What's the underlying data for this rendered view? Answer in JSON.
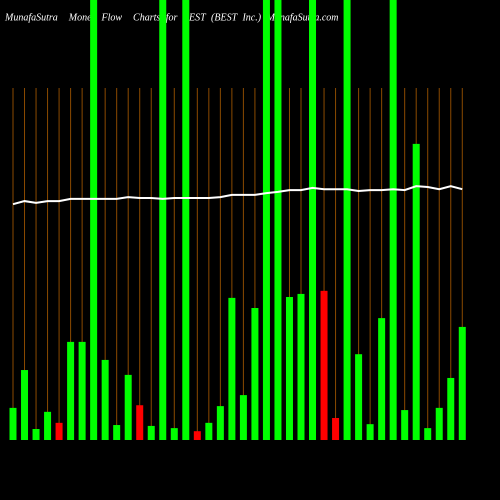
{
  "chart_data": {
    "type": "bar",
    "title": "MunafaSutra  Money Flow  Charts for BEST (BEST Inc.) MunafaSutra.com",
    "categories": [
      null,
      null,
      null,
      null,
      null,
      null,
      null,
      null,
      null,
      null,
      null,
      null,
      null,
      null,
      null,
      null,
      null,
      null,
      null,
      null,
      null,
      null,
      null,
      null,
      null,
      null,
      null,
      null,
      null,
      null,
      null,
      null,
      null,
      null,
      null,
      null,
      null,
      null,
      null,
      null
    ],
    "values": [
      7.3,
      15.9,
      2.5,
      6.4,
      3.9,
      22.3,
      22.3,
      100,
      18.2,
      3.4,
      14.8,
      7.9,
      3.2,
      100,
      2.7,
      100,
      2.0,
      3.9,
      7.7,
      32.3,
      10.2,
      30.0,
      100,
      100,
      32.5,
      33.2,
      100,
      33.9,
      5.0,
      100,
      19.5,
      3.6,
      27.7,
      100,
      6.8,
      67.3,
      2.7,
      7.3,
      14.1,
      25.7
    ],
    "colors": [
      "#00ff00",
      "#00ff00",
      "#00ff00",
      "#00ff00",
      "#ff0000",
      "#00ff00",
      "#00ff00",
      "#00ff00",
      "#00ff00",
      "#00ff00",
      "#00ff00",
      "#ff0000",
      "#00ff00",
      "#00ff00",
      "#00ff00",
      "#00ff00",
      "#ff0000",
      "#00ff00",
      "#00ff00",
      "#00ff00",
      "#00ff00",
      "#00ff00",
      "#00ff00",
      "#00ff00",
      "#00ff00",
      "#00ff00",
      "#00ff00",
      "#ff0000",
      "#ff0000",
      "#00ff00",
      "#00ff00",
      "#00ff00",
      "#00ff00",
      "#00ff00",
      "#00ff00",
      "#00ff00",
      "#00ff00",
      "#00ff00",
      "#00ff00",
      "#00ff00"
    ],
    "line": {
      "color": "#ffffff",
      "values": [
        53.6,
        54.3,
        53.9,
        54.3,
        54.3,
        54.8,
        54.8,
        54.8,
        54.8,
        54.8,
        55.2,
        55.0,
        55.0,
        54.8,
        55.0,
        55.0,
        55.0,
        55.0,
        55.2,
        55.7,
        55.7,
        55.7,
        56.1,
        56.4,
        56.8,
        56.8,
        57.3,
        57.0,
        57.0,
        57.0,
        56.6,
        56.8,
        56.8,
        57.0,
        56.8,
        57.7,
        57.5,
        57.0,
        57.7,
        57.0
      ]
    },
    "ylim": [
      0,
      100
    ],
    "grid_color": "#8b4a00"
  }
}
